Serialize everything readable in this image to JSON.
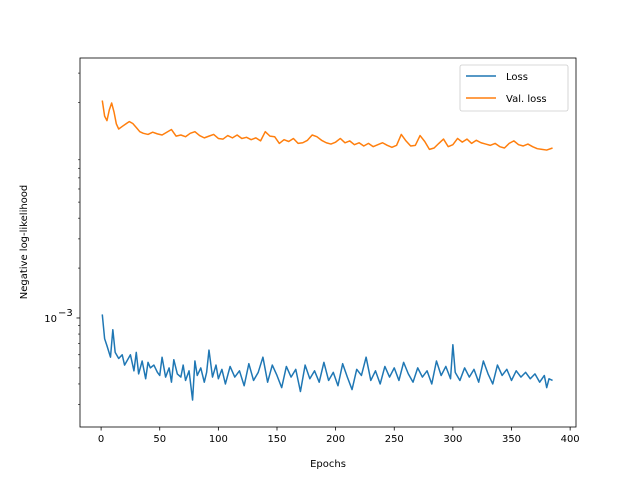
{
  "chart_data": {
    "type": "line",
    "title": "",
    "xlabel": "Epochs",
    "ylabel": "Negative log-likelihood",
    "yscale": "log",
    "xlim": [
      -18,
      405
    ],
    "ylim": [
      0.00022,
      0.037
    ],
    "x_ticks": [
      0,
      50,
      100,
      150,
      200,
      250,
      300,
      350,
      400
    ],
    "y_ticks": [
      {
        "value": 0.001,
        "label": "10",
        "exp": "−3"
      }
    ],
    "grid": false,
    "legend_position": "top-right",
    "series": [
      {
        "name": "Loss",
        "color": "#1f77b4",
        "x": [
          1,
          3,
          5,
          8,
          10,
          12,
          15,
          18,
          20,
          22,
          25,
          28,
          30,
          32,
          35,
          38,
          40,
          42,
          45,
          48,
          50,
          52,
          55,
          58,
          60,
          62,
          65,
          68,
          70,
          72,
          75,
          78,
          80,
          82,
          85,
          88,
          90,
          92,
          95,
          98,
          100,
          103,
          106,
          110,
          114,
          118,
          122,
          126,
          130,
          134,
          138,
          142,
          146,
          150,
          154,
          158,
          162,
          166,
          170,
          174,
          178,
          182,
          186,
          190,
          194,
          198,
          202,
          206,
          210,
          214,
          218,
          222,
          226,
          230,
          234,
          238,
          242,
          246,
          250,
          254,
          258,
          262,
          266,
          270,
          274,
          278,
          282,
          286,
          290,
          294,
          298,
          300,
          302,
          306,
          310,
          314,
          318,
          322,
          326,
          330,
          334,
          338,
          342,
          346,
          350,
          354,
          358,
          362,
          366,
          370,
          374,
          378,
          380,
          382,
          385
        ],
        "y": [
          0.00105,
          0.00075,
          0.00068,
          0.00058,
          0.00085,
          0.00062,
          0.00057,
          0.0006,
          0.00052,
          0.00055,
          0.0006,
          0.00048,
          0.00062,
          0.00046,
          0.00055,
          0.00043,
          0.00054,
          0.0005,
          0.00052,
          0.00047,
          0.00045,
          0.00058,
          0.00044,
          0.0005,
          0.00041,
          0.00056,
          0.00046,
          0.00044,
          0.00052,
          0.00042,
          0.00048,
          0.00032,
          0.00055,
          0.00045,
          0.0005,
          0.00041,
          0.00047,
          0.00064,
          0.00044,
          0.00052,
          0.00043,
          0.00049,
          0.0004,
          0.00051,
          0.00044,
          0.00048,
          0.00039,
          0.00053,
          0.00042,
          0.00047,
          0.00058,
          0.00041,
          0.00052,
          0.00045,
          0.00038,
          0.00051,
          0.00044,
          0.00049,
          0.00036,
          0.00052,
          0.00043,
          0.00048,
          0.00041,
          0.00054,
          0.00042,
          0.00047,
          0.00039,
          0.00053,
          0.00044,
          0.00037,
          0.00049,
          0.00045,
          0.00058,
          0.00042,
          0.00048,
          0.0004,
          0.00051,
          0.00044,
          0.0005,
          0.00042,
          0.00054,
          0.00046,
          0.00041,
          0.0005,
          0.00044,
          0.00048,
          0.0004,
          0.00055,
          0.00045,
          0.00051,
          0.00043,
          0.00069,
          0.00047,
          0.00042,
          0.0005,
          0.00044,
          0.00049,
          0.00041,
          0.00055,
          0.00046,
          0.0004,
          0.00052,
          0.00045,
          0.00049,
          0.00042,
          0.00048,
          0.00044,
          0.00047,
          0.00043,
          0.00046,
          0.00041,
          0.00045,
          0.00038,
          0.00043,
          0.00042
        ]
      },
      {
        "name": "Val. loss",
        "color": "#ff7f0e",
        "x": [
          1,
          3,
          5,
          7,
          9,
          11,
          13,
          15,
          18,
          21,
          24,
          27,
          30,
          33,
          36,
          40,
          44,
          48,
          52,
          56,
          60,
          64,
          68,
          72,
          76,
          80,
          84,
          88,
          92,
          96,
          100,
          104,
          108,
          112,
          116,
          120,
          124,
          128,
          132,
          136,
          140,
          144,
          148,
          152,
          156,
          160,
          164,
          168,
          172,
          176,
          180,
          184,
          188,
          192,
          196,
          200,
          204,
          208,
          212,
          216,
          220,
          224,
          228,
          232,
          236,
          240,
          244,
          248,
          252,
          256,
          260,
          264,
          268,
          272,
          276,
          280,
          284,
          288,
          292,
          296,
          300,
          304,
          308,
          312,
          316,
          320,
          324,
          328,
          332,
          336,
          340,
          344,
          348,
          352,
          356,
          360,
          364,
          368,
          372,
          376,
          380,
          385
        ],
        "y": [
          0.0205,
          0.0165,
          0.0155,
          0.018,
          0.0198,
          0.0175,
          0.0148,
          0.0138,
          0.0143,
          0.0148,
          0.0153,
          0.0149,
          0.0141,
          0.0133,
          0.013,
          0.0128,
          0.0132,
          0.0129,
          0.0127,
          0.0132,
          0.0137,
          0.0125,
          0.0127,
          0.0124,
          0.013,
          0.0133,
          0.0126,
          0.0122,
          0.0125,
          0.0128,
          0.0121,
          0.012,
          0.0126,
          0.0122,
          0.0127,
          0.0121,
          0.0123,
          0.0119,
          0.0122,
          0.0117,
          0.0133,
          0.0125,
          0.0124,
          0.0113,
          0.0119,
          0.0116,
          0.0121,
          0.0113,
          0.0114,
          0.0118,
          0.0127,
          0.0124,
          0.0118,
          0.0114,
          0.0112,
          0.0115,
          0.0121,
          0.0114,
          0.0117,
          0.0111,
          0.0114,
          0.0109,
          0.0113,
          0.0108,
          0.0111,
          0.0114,
          0.011,
          0.0107,
          0.011,
          0.0128,
          0.0117,
          0.0109,
          0.011,
          0.0126,
          0.0116,
          0.0104,
          0.0106,
          0.0113,
          0.012,
          0.0108,
          0.0111,
          0.0121,
          0.0115,
          0.012,
          0.0113,
          0.0118,
          0.0114,
          0.0112,
          0.011,
          0.0113,
          0.0108,
          0.0106,
          0.0113,
          0.0117,
          0.0111,
          0.0109,
          0.0112,
          0.0108,
          0.0105,
          0.0104,
          0.0103,
          0.0106
        ]
      }
    ]
  }
}
